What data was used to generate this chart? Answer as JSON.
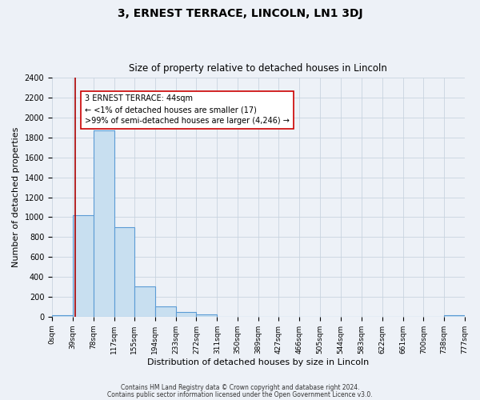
{
  "title": "3, ERNEST TERRACE, LINCOLN, LN1 3DJ",
  "subtitle": "Size of property relative to detached houses in Lincoln",
  "xlabel": "Distribution of detached houses by size in Lincoln",
  "ylabel": "Number of detached properties",
  "bin_edges": [
    0,
    39,
    78,
    117,
    155,
    194,
    233,
    272,
    311,
    350,
    389,
    427,
    466,
    505,
    544,
    583,
    622,
    661,
    700,
    738,
    777
  ],
  "bin_labels": [
    "0sqm",
    "39sqm",
    "78sqm",
    "117sqm",
    "155sqm",
    "194sqm",
    "233sqm",
    "272sqm",
    "311sqm",
    "350sqm",
    "389sqm",
    "427sqm",
    "466sqm",
    "505sqm",
    "544sqm",
    "583sqm",
    "622sqm",
    "661sqm",
    "700sqm",
    "738sqm",
    "777sqm"
  ],
  "counts": [
    17,
    1020,
    1870,
    900,
    305,
    105,
    47,
    20,
    0,
    0,
    0,
    0,
    0,
    0,
    0,
    0,
    0,
    0,
    0,
    17
  ],
  "bar_color": "#c8dff0",
  "bar_edge_color": "#5b9bd5",
  "property_line_x": 44,
  "property_line_color": "#aa0000",
  "annotation_text": "3 ERNEST TERRACE: 44sqm\n← <1% of detached houses are smaller (17)\n>99% of semi-detached houses are larger (4,246) →",
  "annotation_box_color": "#ffffff",
  "annotation_box_edge_color": "#cc0000",
  "ylim": [
    0,
    2400
  ],
  "yticks": [
    0,
    200,
    400,
    600,
    800,
    1000,
    1200,
    1400,
    1600,
    1800,
    2000,
    2200,
    2400
  ],
  "grid_color": "#c8d4e0",
  "bg_color": "#edf1f7",
  "footer_line1": "Contains HM Land Registry data © Crown copyright and database right 2024.",
  "footer_line2": "Contains public sector information licensed under the Open Government Licence v3.0."
}
